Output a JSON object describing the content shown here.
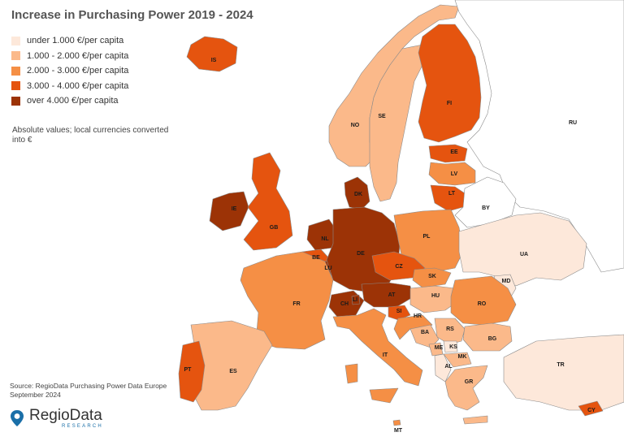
{
  "title": "Increase in Purchasing Power 2019 - 2024",
  "legend": [
    {
      "label": "under 1.000  €/per capita",
      "color": "#fde8da"
    },
    {
      "label": "1.000 - 2.000 €/per capita",
      "color": "#fbb98a"
    },
    {
      "label": "2.000 -  3.000 €/per capita",
      "color": "#f58f45"
    },
    {
      "label": "3.000 - 4.000 €/per capita",
      "color": "#e5540f"
    },
    {
      "label": "over 4.000 €/per capita",
      "color": "#9c3306"
    }
  ],
  "note": "Absolute values; local currencies converted into €",
  "source": "Source: RegioData Purchasing Power Data Europe\nSeptember 2024",
  "logo": {
    "name": "RegioData",
    "sub": "RESEARCH"
  },
  "countries": [
    {
      "code": "IS",
      "category": 4
    },
    {
      "code": "NO",
      "category": 2
    },
    {
      "code": "SE",
      "category": 2
    },
    {
      "code": "FI",
      "category": 4
    },
    {
      "code": "RU",
      "category": 0
    },
    {
      "code": "EE",
      "category": 4
    },
    {
      "code": "LV",
      "category": 3
    },
    {
      "code": "LT",
      "category": 4
    },
    {
      "code": "BY",
      "category": 0
    },
    {
      "code": "DK",
      "category": 5
    },
    {
      "code": "IE",
      "category": 5
    },
    {
      "code": "GB",
      "category": 4
    },
    {
      "code": "NL",
      "category": 5
    },
    {
      "code": "BE",
      "category": 4
    },
    {
      "code": "LU",
      "category": 5
    },
    {
      "code": "DE",
      "category": 5
    },
    {
      "code": "PL",
      "category": 3
    },
    {
      "code": "UA",
      "category": 1
    },
    {
      "code": "CZ",
      "category": 4
    },
    {
      "code": "SK",
      "category": 3
    },
    {
      "code": "MD",
      "category": 1
    },
    {
      "code": "FR",
      "category": 3
    },
    {
      "code": "CH",
      "category": 5
    },
    {
      "code": "LI",
      "category": 5
    },
    {
      "code": "AT",
      "category": 5
    },
    {
      "code": "HU",
      "category": 2
    },
    {
      "code": "RO",
      "category": 3
    },
    {
      "code": "SI",
      "category": 4
    },
    {
      "code": "HR",
      "category": 3
    },
    {
      "code": "RS",
      "category": 2
    },
    {
      "code": "BA",
      "category": 2
    },
    {
      "code": "ME",
      "category": 2
    },
    {
      "code": "KS",
      "category": 1
    },
    {
      "code": "BG",
      "category": 2
    },
    {
      "code": "MK",
      "category": 2
    },
    {
      "code": "AL",
      "category": 1
    },
    {
      "code": "IT",
      "category": 3
    },
    {
      "code": "ES",
      "category": 2
    },
    {
      "code": "PT",
      "category": 4
    },
    {
      "code": "GR",
      "category": 2
    },
    {
      "code": "TR",
      "category": 1
    },
    {
      "code": "CY",
      "category": 4
    },
    {
      "code": "MT",
      "category": 3
    }
  ]
}
